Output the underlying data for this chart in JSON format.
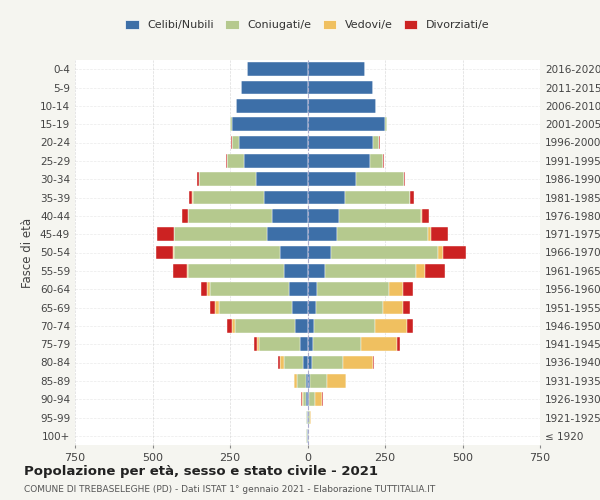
{
  "age_groups": [
    "100+",
    "95-99",
    "90-94",
    "85-89",
    "80-84",
    "75-79",
    "70-74",
    "65-69",
    "60-64",
    "55-59",
    "50-54",
    "45-49",
    "40-44",
    "35-39",
    "30-34",
    "25-29",
    "20-24",
    "15-19",
    "10-14",
    "5-9",
    "0-4"
  ],
  "birth_years": [
    "≤ 1920",
    "1921-1925",
    "1926-1930",
    "1931-1935",
    "1936-1940",
    "1941-1945",
    "1946-1950",
    "1951-1955",
    "1956-1960",
    "1961-1965",
    "1966-1970",
    "1971-1975",
    "1976-1980",
    "1981-1985",
    "1986-1990",
    "1991-1995",
    "1996-2000",
    "2001-2005",
    "2006-2010",
    "2011-2015",
    "2016-2020"
  ],
  "males": {
    "celibe": [
      2,
      2,
      4,
      5,
      15,
      25,
      40,
      50,
      60,
      75,
      90,
      130,
      115,
      140,
      165,
      205,
      220,
      245,
      230,
      215,
      195
    ],
    "coniugato": [
      2,
      3,
      12,
      30,
      60,
      130,
      195,
      235,
      255,
      310,
      340,
      300,
      270,
      230,
      185,
      55,
      25,
      5,
      2,
      1,
      0
    ],
    "vedovo": [
      0,
      1,
      3,
      8,
      15,
      8,
      10,
      12,
      8,
      5,
      3,
      2,
      1,
      1,
      0,
      0,
      0,
      0,
      0,
      0,
      0
    ],
    "divorziato": [
      0,
      0,
      1,
      2,
      5,
      8,
      15,
      18,
      22,
      45,
      55,
      55,
      18,
      12,
      8,
      2,
      1,
      0,
      0,
      0,
      0
    ]
  },
  "females": {
    "nubile": [
      2,
      2,
      5,
      8,
      15,
      18,
      22,
      28,
      32,
      55,
      75,
      95,
      100,
      120,
      155,
      200,
      210,
      250,
      220,
      210,
      185
    ],
    "coniugata": [
      2,
      5,
      18,
      55,
      100,
      155,
      195,
      215,
      230,
      295,
      345,
      295,
      265,
      210,
      155,
      45,
      22,
      8,
      2,
      0,
      0
    ],
    "vedova": [
      2,
      5,
      25,
      60,
      95,
      115,
      105,
      65,
      45,
      30,
      18,
      8,
      5,
      2,
      1,
      0,
      0,
      0,
      0,
      0,
      0
    ],
    "divorziata": [
      0,
      0,
      1,
      2,
      5,
      10,
      18,
      22,
      32,
      65,
      72,
      55,
      22,
      12,
      5,
      2,
      1,
      0,
      0,
      0,
      0
    ]
  },
  "colors": {
    "celibe": "#3d6fa8",
    "coniugato": "#b5c98e",
    "vedovo": "#f0c060",
    "divorziato": "#cc2222"
  },
  "legend_labels": [
    "Celibi/Nubili",
    "Coniugati/e",
    "Vedovi/e",
    "Divorziati/e"
  ],
  "xlim": 750,
  "title": "Popolazione per età, sesso e stato civile - 2021",
  "subtitle": "COMUNE DI TREBASELEGHE (PD) - Dati ISTAT 1° gennaio 2021 - Elaborazione TUTTITALIA.IT",
  "ylabel_left": "Fasce di età",
  "bg_color": "#f5f5f0",
  "plot_bg_color": "#ffffff"
}
